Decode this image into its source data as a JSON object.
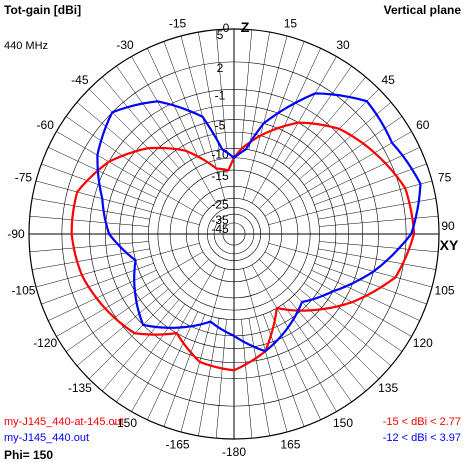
{
  "header": {
    "title": "Tot-gain [dBi]",
    "frequency": "440 MHz",
    "plane": "Vertical plane"
  },
  "axes": {
    "zenith": "Z",
    "horizon": "XY"
  },
  "legend": {
    "series_red": {
      "name": "my-J145_440-at-145.out",
      "range": "-15 < dBi < 2.77"
    },
    "series_blue": {
      "name": "my-J145_440.out",
      "range": "-12 < dBi < 3.97"
    },
    "phi": "Phi= 150"
  },
  "colors": {
    "red": "#ff0000",
    "blue": "#0000ff",
    "grid": "#000000"
  },
  "chart_data": {
    "type": "polar",
    "angle_unit": "degrees",
    "angle_ticks": [
      0,
      15,
      30,
      45,
      60,
      75,
      90,
      105,
      120,
      135,
      150,
      165,
      -180,
      -165,
      -150,
      -135,
      -120,
      -105,
      -90,
      -75,
      -60,
      -45,
      -30,
      -15
    ],
    "radial_tick_labels": [
      "5",
      "2",
      "-1",
      "-5",
      "-10",
      "-15",
      "-25",
      "-35",
      "-45"
    ],
    "radial_tick_values": [
      5,
      2,
      -1,
      -5,
      -10,
      -15,
      -25,
      -35,
      -45
    ],
    "series": [
      {
        "name": "my-J145_440-at-145.out",
        "color": "#ff0000",
        "angles": [
          -180,
          -165,
          -150,
          -135,
          -120,
          -105,
          -90,
          -75,
          -60,
          -45,
          -30,
          -15,
          -5,
          0,
          5,
          15,
          30,
          45,
          60,
          75,
          90,
          105,
          120,
          135,
          150,
          165,
          180
        ],
        "gains": [
          -2,
          -2.5,
          -5,
          -1.5,
          -0.5,
          0.5,
          1,
          1,
          -1,
          -4,
          -8,
          -14,
          -15,
          -12,
          -10,
          -7,
          -3,
          -0.5,
          1,
          2.5,
          2.77,
          1.5,
          -2,
          -6,
          -10,
          -4,
          -2
        ]
      },
      {
        "name": "my-J145_440.out",
        "color": "#0000ff",
        "angles": [
          -180,
          -165,
          -150,
          -135,
          -120,
          -105,
          -90,
          -75,
          -60,
          -45,
          -30,
          -15,
          -8,
          0,
          8,
          15,
          30,
          45,
          60,
          75,
          90,
          105,
          120,
          135,
          150,
          165,
          180
        ],
        "gains": [
          -7,
          -9,
          -6,
          -3,
          -5,
          -7,
          -3.5,
          -2,
          0.5,
          2,
          0,
          -4,
          -10,
          -12,
          -10,
          -5,
          1,
          3.5,
          3,
          3.97,
          2.5,
          -1,
          -5,
          -8,
          -6,
          -4,
          -7
        ]
      }
    ]
  }
}
